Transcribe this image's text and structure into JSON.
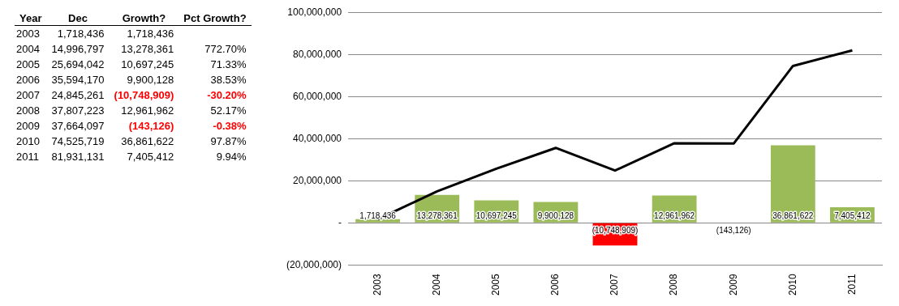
{
  "chart_data": [
    {
      "type": "heatmap",
      "ylabel": "Year",
      "categories": [
        "Dec",
        "Growth?",
        "Pct Growth?"
      ],
      "y_categories": [
        "2003",
        "2004",
        "2005",
        "2006",
        "2007",
        "2008",
        "2009",
        "2010",
        "2011"
      ],
      "cells": [
        [
          1718436,
          1718436,
          null
        ],
        [
          14996797,
          13278361,
          772.7
        ],
        [
          25694042,
          10697245,
          71.33
        ],
        [
          35594170,
          9900128,
          38.53
        ],
        [
          24845261,
          -10748909,
          -30.2
        ],
        [
          37807223,
          12961962,
          52.17
        ],
        [
          37664097,
          -143126,
          -0.38
        ],
        [
          74525719,
          36861622,
          97.87
        ],
        [
          81931131,
          7405412,
          9.94
        ]
      ],
      "cell_labels": [
        [
          "1,718,436",
          "1,718,436",
          null
        ],
        [
          "14,996,797",
          "13,278,361",
          "772.70%"
        ],
        [
          "25,694,042",
          "10,697,245",
          "71.33%"
        ],
        [
          "35,594,170",
          "9,900,128",
          "38.53%"
        ],
        [
          "24,845,261",
          "(10,748,909)",
          "-30.20%"
        ],
        [
          "37,807,223",
          "12,961,962",
          "52.17%"
        ],
        [
          "37,664,097",
          "(143,126)",
          "-0.38%"
        ],
        [
          "74,525,719",
          "36,861,622",
          "97.87%"
        ],
        [
          "81,931,131",
          "7,405,412",
          "9.94%"
        ]
      ]
    },
    {
      "type": "bar",
      "categories": [
        "2003",
        "2004",
        "2005",
        "2006",
        "2007",
        "2008",
        "2009",
        "2010",
        "2011"
      ],
      "ylim": [
        -20000000,
        100000000
      ],
      "yticks": [
        {
          "value": -20000000,
          "label": "(20,000,000)"
        },
        {
          "value": 0,
          "label": "-"
        },
        {
          "value": 20000000,
          "label": "20,000,000"
        },
        {
          "value": 40000000,
          "label": "40,000,000"
        },
        {
          "value": 60000000,
          "label": "60,000,000"
        },
        {
          "value": 80000000,
          "label": "80,000,000"
        },
        {
          "value": 100000000,
          "label": "100,000,000"
        }
      ],
      "grid": "y",
      "legend": false,
      "series": [
        {
          "type": "bar",
          "colors": [
            "#9bbb59",
            "#9bbb59",
            "#9bbb59",
            "#9bbb59",
            "#ff0000",
            "#9bbb59",
            "#ff0000",
            "#9bbb59",
            "#9bbb59"
          ],
          "values": [
            1718436,
            13278361,
            10697245,
            9900128,
            -10748909,
            12961962,
            -143126,
            36861622,
            7405412
          ],
          "value_labels": [
            "1,718,436",
            "13,278,361",
            "10,697,245",
            "9,900,128",
            "(10,748,909)",
            "12,961,962",
            "(143,126)",
            "36,861,622",
            "7,405,412"
          ]
        },
        {
          "type": "line",
          "color": "#000000",
          "marker": "none",
          "values": [
            1718436,
            14996797,
            25694042,
            35594170,
            24845261,
            37807223,
            37664097,
            74525719,
            81931131
          ]
        }
      ]
    }
  ]
}
